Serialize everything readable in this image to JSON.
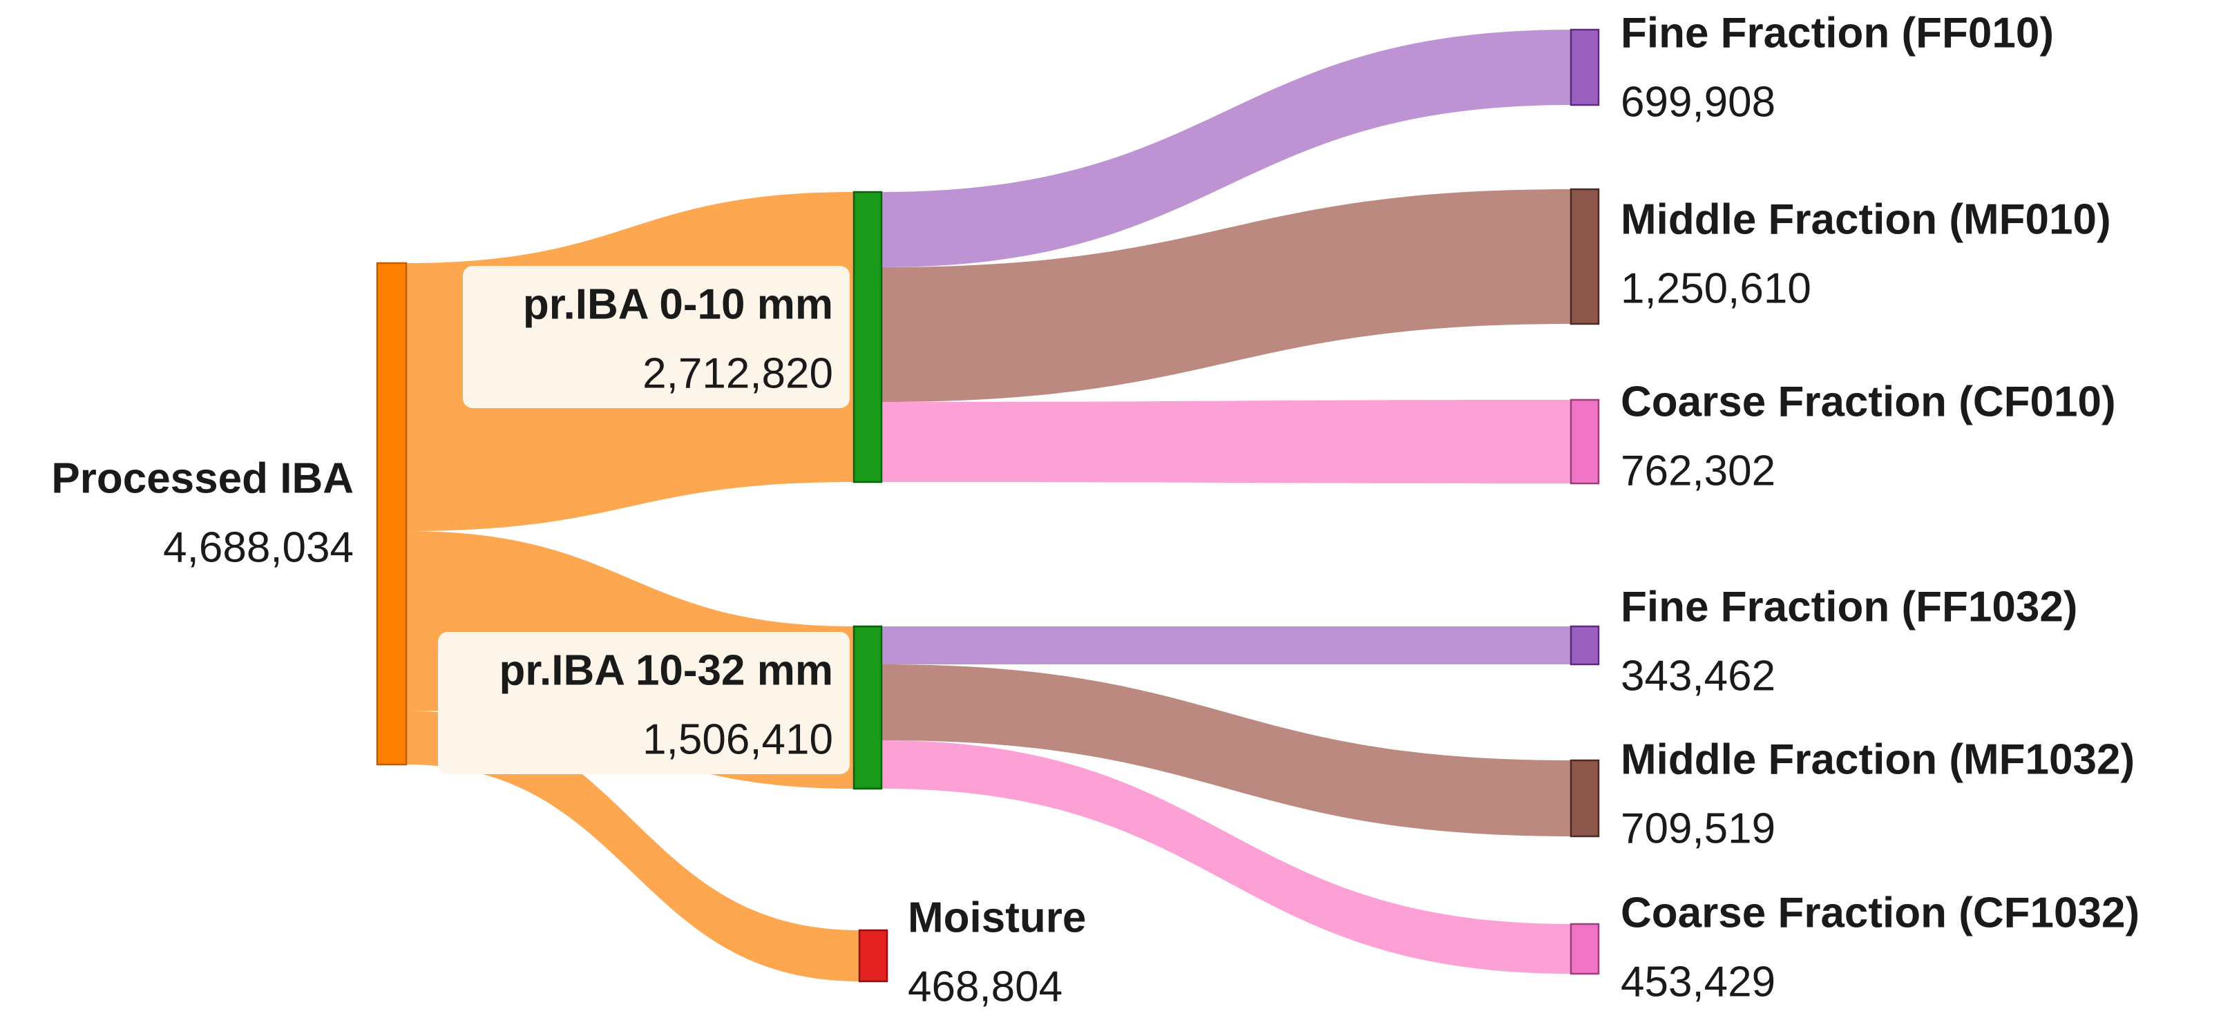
{
  "diagram": {
    "type": "sankey",
    "nodes": [
      {
        "id": "processed",
        "name": "Processed IBA",
        "value": "4,688,034",
        "color": "#FF7F00",
        "border": "#C25A00"
      },
      {
        "id": "iba010",
        "name": "pr.IBA 0-10 mm",
        "value": "2,712,820",
        "color": "#1A9A1A",
        "border": "#0B5E0B"
      },
      {
        "id": "iba1032",
        "name": "pr.IBA 10-32 mm",
        "value": "1,506,410",
        "color": "#1A9A1A",
        "border": "#0B5E0B"
      },
      {
        "id": "moisture",
        "name": "Moisture",
        "value": "468,804",
        "color": "#E52222",
        "border": "#8E1010"
      },
      {
        "id": "ff010",
        "name": "Fine Fraction (FF010)",
        "value": "699,908",
        "color": "#9B5FC0",
        "border": "#5A2D7A"
      },
      {
        "id": "mf010",
        "name": "Middle Fraction (MF010)",
        "value": "1,250,610",
        "color": "#8C564B",
        "border": "#4D2A23"
      },
      {
        "id": "cf010",
        "name": "Coarse Fraction (CF010)",
        "value": "762,302",
        "color": "#F075C4",
        "border": "#9B3F7E"
      },
      {
        "id": "ff1032",
        "name": "Fine Fraction (FF1032)",
        "value": "343,462",
        "color": "#9B5FC0",
        "border": "#5A2D7A"
      },
      {
        "id": "mf1032",
        "name": "Middle Fraction (MF1032)",
        "value": "709,519",
        "color": "#8C564B",
        "border": "#4D2A23"
      },
      {
        "id": "cf1032",
        "name": "Coarse Fraction (CF1032)",
        "value": "453,429",
        "color": "#F075C4",
        "border": "#9B3F7E"
      }
    ],
    "links": [
      {
        "source": "processed",
        "target": "iba010",
        "value": 2712820,
        "color": "#FDA750"
      },
      {
        "source": "processed",
        "target": "iba1032",
        "value": 1506410,
        "color": "#FDA750"
      },
      {
        "source": "processed",
        "target": "moisture",
        "value": 468804,
        "color": "#FDA750"
      },
      {
        "source": "iba010",
        "target": "ff010",
        "value": 699908,
        "color": "#BE93D4"
      },
      {
        "source": "iba010",
        "target": "mf010",
        "value": 1250610,
        "color": "#BC8981"
      },
      {
        "source": "iba010",
        "target": "cf010",
        "value": 762302,
        "color": "#FCA0D6"
      },
      {
        "source": "iba1032",
        "target": "ff1032",
        "value": 343462,
        "color": "#BE93D4"
      },
      {
        "source": "iba1032",
        "target": "mf1032",
        "value": 709519,
        "color": "#BC8981"
      },
      {
        "source": "iba1032",
        "target": "cf1032",
        "value": 453429,
        "color": "#FCA0D6"
      }
    ],
    "label_box_color": "#FDF4EA"
  }
}
